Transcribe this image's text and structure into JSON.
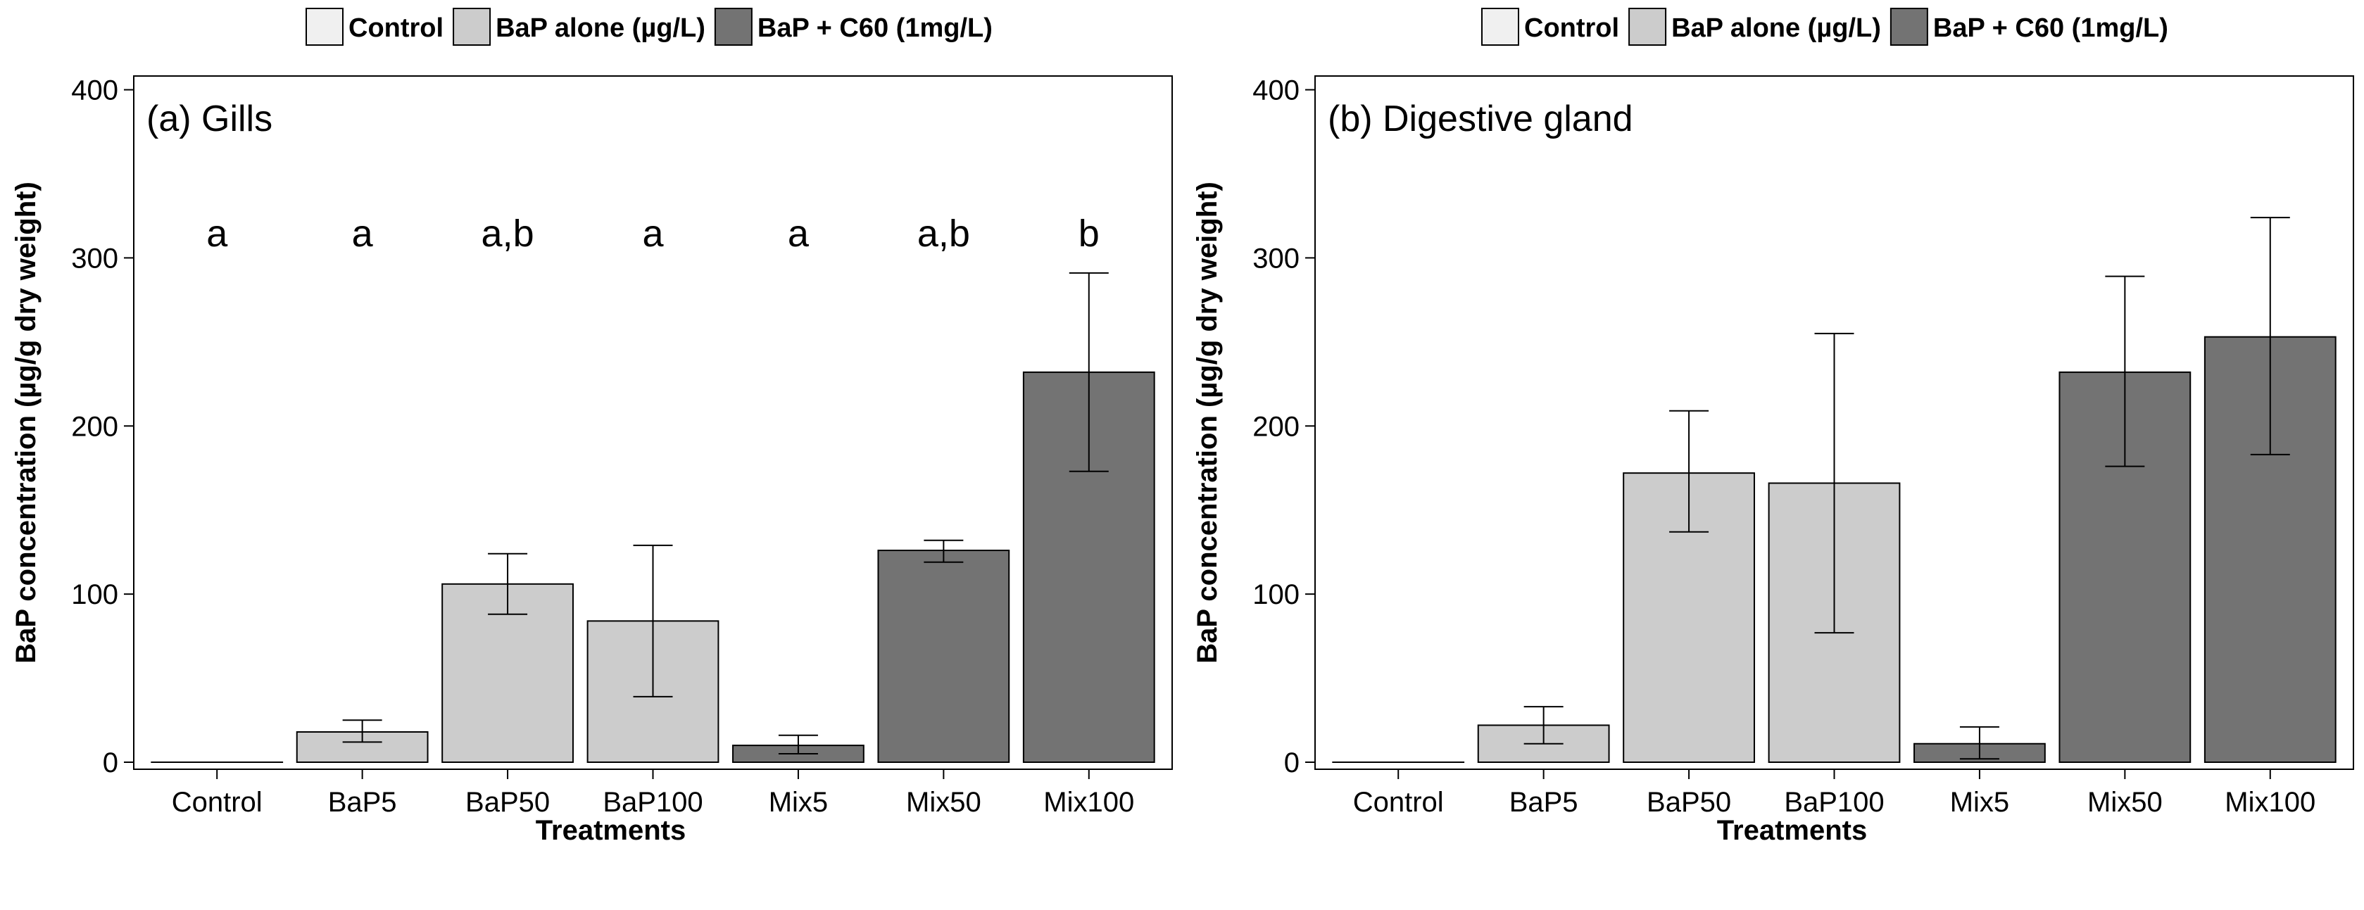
{
  "colors": {
    "Control": "#f0f0f0",
    "BaP alone (µg/L)": "#cccccc",
    "BaP + C60 (1mg/L)": "#737373",
    "stroke": "#000000"
  },
  "chart_data": [
    {
      "type": "bar",
      "title": "(a) Gills",
      "xlabel": "Treatments",
      "ylabel": "BaP concentration (µg/g dry weight)",
      "ylim": [
        0,
        400
      ],
      "yticks": [
        0,
        100,
        200,
        300,
        400
      ],
      "categories": [
        "Control",
        "BaP5",
        "BaP50",
        "BaP100",
        "Mix5",
        "Mix50",
        "Mix100"
      ],
      "groups": [
        "Control",
        "BaP alone (µg/L)",
        "BaP alone (µg/L)",
        "BaP alone (µg/L)",
        "BaP + C60 (1mg/L)",
        "BaP + C60 (1mg/L)",
        "BaP + C60 (1mg/L)"
      ],
      "values": [
        0,
        18,
        106,
        84,
        10,
        126,
        232
      ],
      "error_low": [
        0,
        12,
        88,
        39,
        5,
        119,
        173
      ],
      "error_high": [
        0,
        25,
        124,
        129,
        16,
        132,
        291
      ],
      "significance": [
        "a",
        "a",
        "a,b",
        "a",
        "a",
        "a,b",
        "b"
      ],
      "legend": [
        "Control",
        "BaP alone (µg/L)",
        "BaP + C60 (1mg/L)"
      ]
    },
    {
      "type": "bar",
      "title": "(b) Digestive gland",
      "xlabel": "Treatments",
      "ylabel": "BaP concentration (µg/g dry weight)",
      "ylim": [
        0,
        400
      ],
      "yticks": [
        0,
        100,
        200,
        300,
        400
      ],
      "categories": [
        "Control",
        "BaP5",
        "BaP50",
        "BaP100",
        "Mix5",
        "Mix50",
        "Mix100"
      ],
      "groups": [
        "Control",
        "BaP alone (µg/L)",
        "BaP alone (µg/L)",
        "BaP alone (µg/L)",
        "BaP + C60 (1mg/L)",
        "BaP + C60 (1mg/L)",
        "BaP + C60 (1mg/L)"
      ],
      "values": [
        0,
        22,
        172,
        166,
        11,
        232,
        253
      ],
      "error_low": [
        0,
        11,
        137,
        77,
        2,
        176,
        183
      ],
      "error_high": [
        0,
        33,
        209,
        255,
        21,
        289,
        324
      ],
      "significance": [],
      "legend": [
        "Control",
        "BaP alone (µg/L)",
        "BaP + C60 (1mg/L)"
      ]
    }
  ]
}
